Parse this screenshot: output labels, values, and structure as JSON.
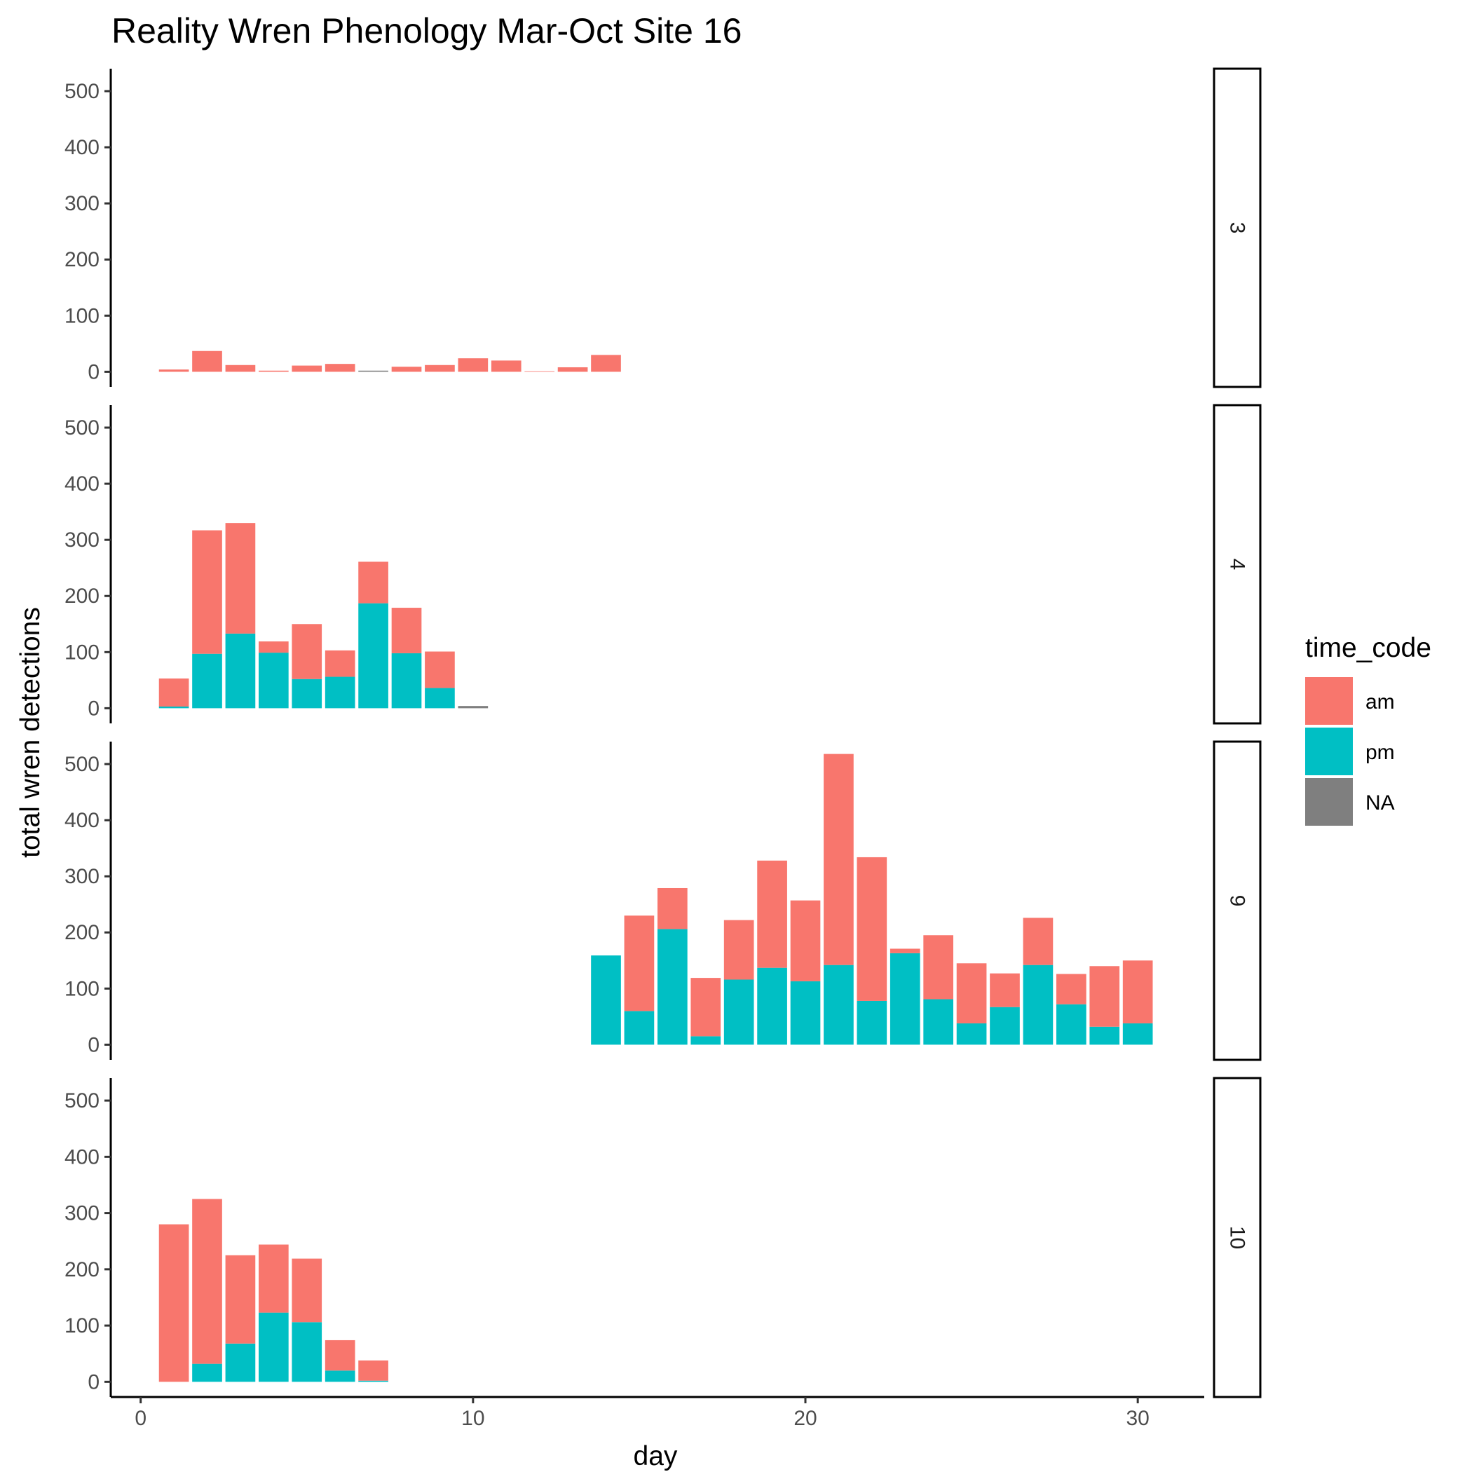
{
  "chart_data": {
    "type": "bar",
    "stacked": true,
    "title": "Reality Wren Phenology Mar-Oct Site 16",
    "xlabel": "day",
    "ylabel": "total wren detections",
    "xlim": [
      -0.9,
      32
    ],
    "ylim": [
      -27,
      540
    ],
    "x_ticks": [
      0,
      10,
      20,
      30
    ],
    "y_ticks": [
      0,
      100,
      200,
      300,
      400,
      500
    ],
    "grid": false,
    "legend": {
      "title": "time_code",
      "position": "right",
      "entries": [
        {
          "key": "am",
          "label": "am",
          "color": "#F8766D"
        },
        {
          "key": "pm",
          "label": "pm",
          "color": "#00BFC4"
        },
        {
          "key": "NA",
          "label": "NA",
          "color": "#7F7F7F"
        }
      ]
    },
    "facets": [
      {
        "label": "3",
        "days": [
          1,
          2,
          3,
          4,
          5,
          6,
          7,
          8,
          9,
          10,
          11,
          12,
          13,
          14
        ],
        "am": [
          4,
          37,
          12,
          2,
          11,
          14,
          0,
          9,
          12,
          24,
          20,
          1,
          8,
          30
        ],
        "pm": [
          0,
          0,
          0,
          0,
          0,
          0,
          0,
          0,
          0,
          0,
          0,
          0,
          0,
          0
        ],
        "NA": [
          0,
          0,
          0,
          0,
          0,
          0,
          2,
          0,
          0,
          0,
          0,
          0,
          0,
          0
        ]
      },
      {
        "label": "4",
        "days": [
          1,
          2,
          3,
          4,
          5,
          6,
          7,
          8,
          9,
          10
        ],
        "am": [
          50,
          220,
          197,
          20,
          98,
          47,
          74,
          81,
          65,
          0
        ],
        "pm": [
          3,
          97,
          133,
          99,
          52,
          56,
          187,
          98,
          36,
          0
        ],
        "NA": [
          0,
          0,
          0,
          0,
          0,
          0,
          0,
          0,
          0,
          4
        ]
      },
      {
        "label": "9",
        "days": [
          14,
          15,
          16,
          17,
          18,
          19,
          20,
          21,
          22,
          23,
          24,
          25,
          26,
          27,
          28,
          29,
          30
        ],
        "am": [
          0,
          170,
          73,
          104,
          106,
          191,
          144,
          376,
          256,
          8,
          114,
          107,
          60,
          84,
          54,
          108,
          112
        ],
        "pm": [
          159,
          60,
          206,
          15,
          116,
          137,
          113,
          142,
          78,
          163,
          81,
          38,
          67,
          142,
          72,
          32,
          38
        ],
        "NA": [
          0,
          0,
          0,
          0,
          0,
          0,
          0,
          0,
          0,
          0,
          0,
          0,
          0,
          0,
          0,
          0,
          0
        ]
      },
      {
        "label": "10",
        "days": [
          1,
          2,
          3,
          4,
          5,
          6,
          7
        ],
        "am": [
          280,
          293,
          157,
          121,
          113,
          54,
          36
        ],
        "pm": [
          0,
          32,
          68,
          123,
          106,
          20,
          2
        ],
        "NA": [
          0,
          0,
          0,
          0,
          0,
          0,
          0
        ]
      }
    ]
  }
}
